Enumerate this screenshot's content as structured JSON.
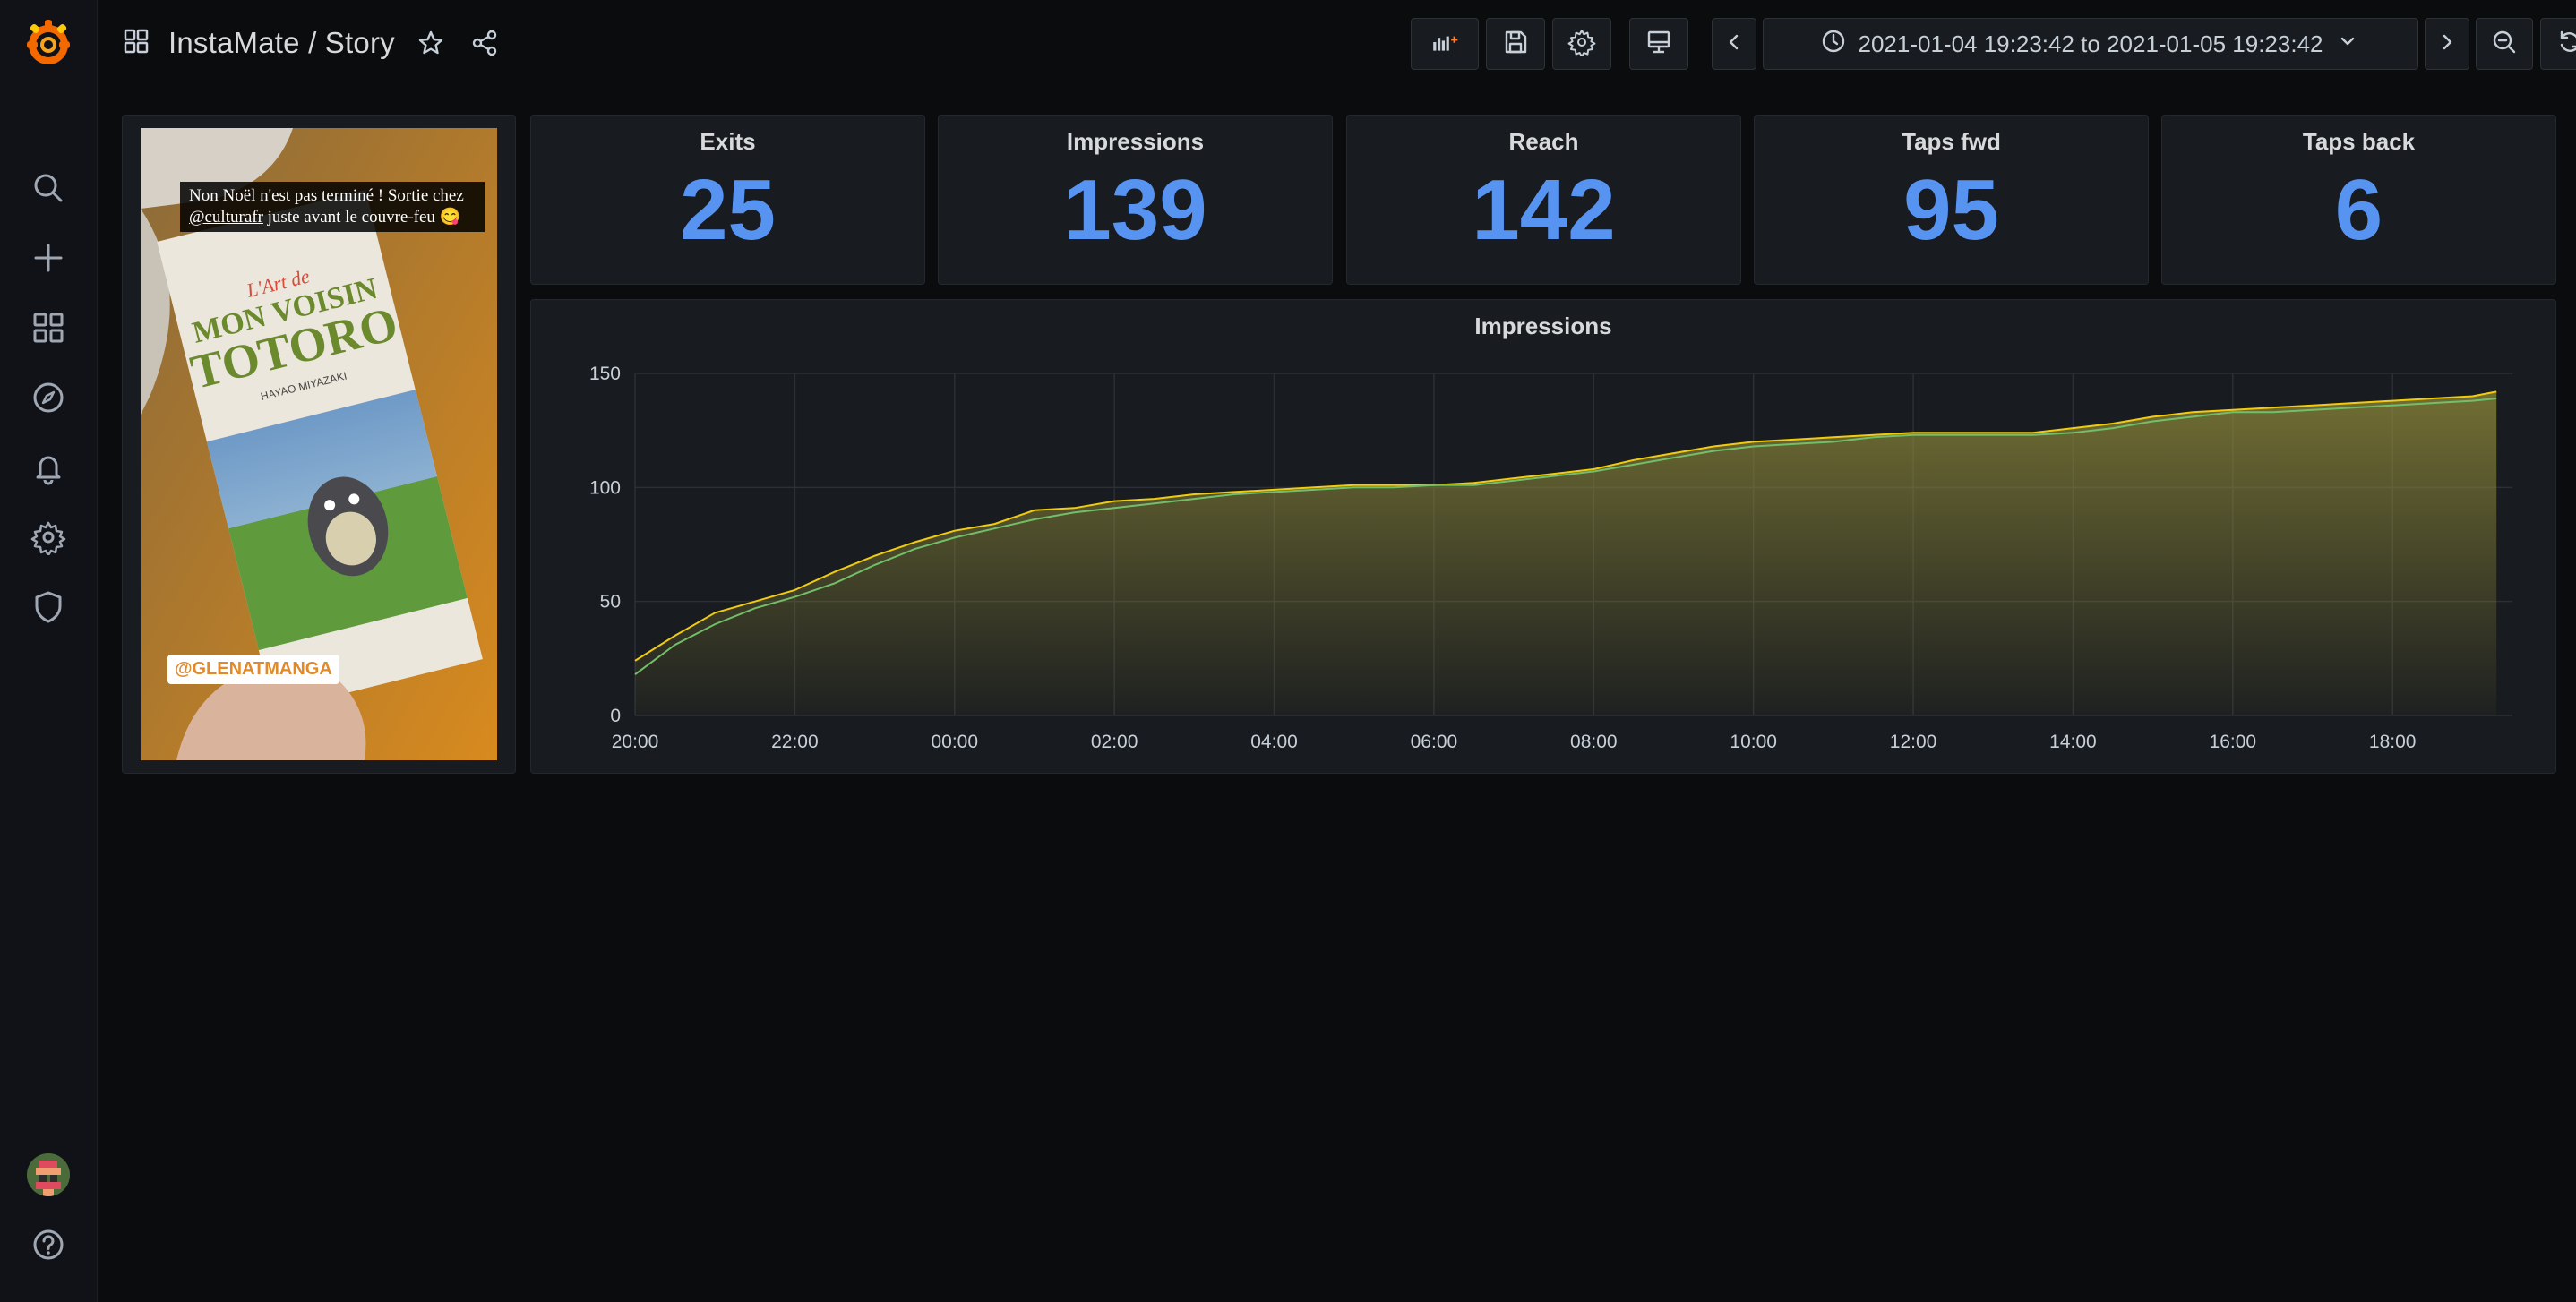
{
  "header": {
    "title": "InstaMate / Story",
    "time_range": "2021-01-04 19:23:42 to 2021-01-05 19:23:42"
  },
  "sidebar": {
    "items": [
      {
        "icon": "search-icon"
      },
      {
        "icon": "plus-icon"
      },
      {
        "icon": "dashboards-icon"
      },
      {
        "icon": "compass-icon"
      },
      {
        "icon": "bell-icon"
      },
      {
        "icon": "gear-icon"
      },
      {
        "icon": "shield-icon"
      }
    ],
    "help_icon": "help-icon"
  },
  "story": {
    "caption_line1": "Non Noël n'est pas terminé ! Sortie chez",
    "caption_mention": "@culturafr",
    "caption_line2": "juste avant le couvre-feu 😋",
    "tag": "@GLENATMANGA",
    "book_title": "MON VOISIN TOTORO",
    "book_author": "HAYAO MIYAZAKI",
    "book_prefix": "L'Art de"
  },
  "stats": [
    {
      "title": "Exits",
      "value": "25"
    },
    {
      "title": "Impressions",
      "value": "139"
    },
    {
      "title": "Reach",
      "value": "142"
    },
    {
      "title": "Taps fwd",
      "value": "95"
    },
    {
      "title": "Taps back",
      "value": "6"
    }
  ],
  "colors": {
    "stat_value": "#5794f2",
    "series_yellow": "#f2cc0c",
    "series_green": "#73bf69",
    "panel_bg": "#181b1f",
    "page_bg": "#0b0c0e"
  },
  "chart_data": {
    "type": "area",
    "title": "Impressions",
    "x_ticks": [
      "20:00",
      "22:00",
      "00:00",
      "02:00",
      "04:00",
      "06:00",
      "08:00",
      "10:00",
      "12:00",
      "14:00",
      "16:00",
      "18:00"
    ],
    "y_ticks": [
      "0",
      "50",
      "100",
      "150"
    ],
    "ylim": [
      0,
      150
    ],
    "xlim_hours": [
      0,
      23.5
    ],
    "x_hours": [
      0,
      0.5,
      1,
      1.5,
      2,
      2.5,
      3,
      3.5,
      4,
      4.5,
      5,
      5.5,
      6,
      6.5,
      7,
      7.5,
      8,
      8.5,
      9,
      9.5,
      10,
      10.5,
      11,
      11.5,
      12,
      12.5,
      13,
      13.5,
      14,
      14.5,
      15,
      15.5,
      16,
      16.5,
      17,
      17.5,
      18,
      18.5,
      19,
      19.5,
      20,
      20.5,
      21,
      21.5,
      22,
      22.5,
      23,
      23.3
    ],
    "series": [
      {
        "color": "#f2cc0c",
        "values": [
          24,
          35,
          45,
          50,
          55,
          63,
          70,
          76,
          81,
          84,
          90,
          91,
          94,
          95,
          97,
          98,
          99,
          100,
          101,
          101,
          101,
          102,
          104,
          106,
          108,
          112,
          115,
          118,
          120,
          121,
          122,
          123,
          124,
          124,
          124,
          124,
          126,
          128,
          131,
          133,
          134,
          135,
          136,
          137,
          138,
          139,
          140,
          142
        ]
      },
      {
        "color": "#73bf69",
        "values": [
          18,
          31,
          40,
          47,
          52,
          58,
          66,
          73,
          78,
          82,
          86,
          89,
          91,
          93,
          95,
          97,
          98,
          99,
          100,
          100,
          101,
          101,
          103,
          105,
          107,
          110,
          113,
          116,
          118,
          119,
          120,
          122,
          123,
          123,
          123,
          123,
          124,
          126,
          129,
          131,
          133,
          133,
          134,
          135,
          136,
          137,
          138,
          139
        ]
      }
    ]
  }
}
